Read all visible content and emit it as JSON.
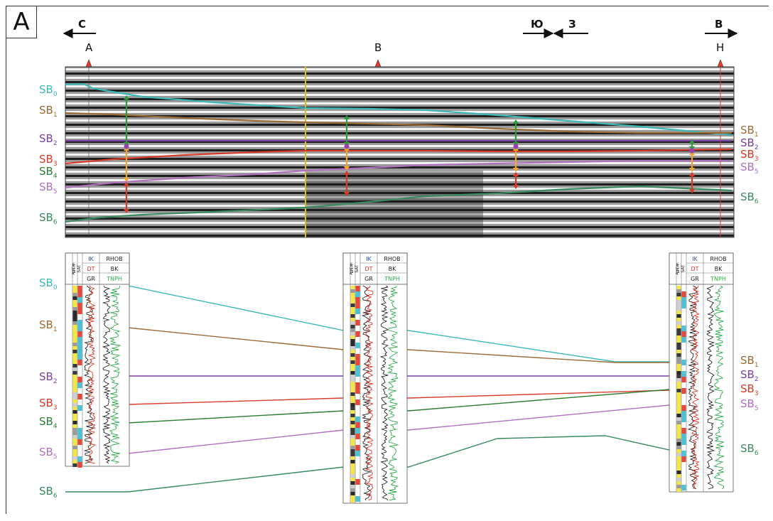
{
  "panel_label": "А",
  "direction_labels": {
    "left": "С",
    "south": "Ю",
    "west": "З",
    "right": "В"
  },
  "wells": [
    {
      "name": "А",
      "color": "#d94030"
    },
    {
      "name": "В",
      "color": "#d94030"
    },
    {
      "name": "Н",
      "color": "#d94030"
    }
  ],
  "log_header": {
    "depth_lines": [
      "Abs. m",
      "depth, m"
    ],
    "litho": "LITH",
    "sat": "SAT",
    "curves": [
      {
        "text": "IK",
        "color": "#2a4db5"
      },
      {
        "text": "DT",
        "color": "#e03020"
      },
      {
        "text": "GR",
        "color": "#222222"
      },
      {
        "text": "RHOB",
        "color": "#222222"
      },
      {
        "text": "BK",
        "color": "#222222"
      },
      {
        "text": "TNPH",
        "color": "#2ea84a"
      }
    ]
  },
  "horizons": [
    {
      "id": "SB0",
      "base": "SB",
      "sub": "0",
      "color": "#3bb8b8"
    },
    {
      "id": "SB1",
      "base": "SB",
      "sub": "1",
      "color": "#9b6a35"
    },
    {
      "id": "SB2",
      "base": "SB",
      "sub": "2",
      "color": "#7a3fa0"
    },
    {
      "id": "SB3",
      "base": "SB",
      "sub": "3",
      "color": "#d83a2a"
    },
    {
      "id": "SB4",
      "base": "SB",
      "sub": "4",
      "color": "#2e7d32"
    },
    {
      "id": "SB5",
      "base": "SB",
      "sub": "5",
      "color": "#b070c0"
    },
    {
      "id": "SB6",
      "base": "SB",
      "sub": "6",
      "color": "#3a8a60"
    }
  ]
}
